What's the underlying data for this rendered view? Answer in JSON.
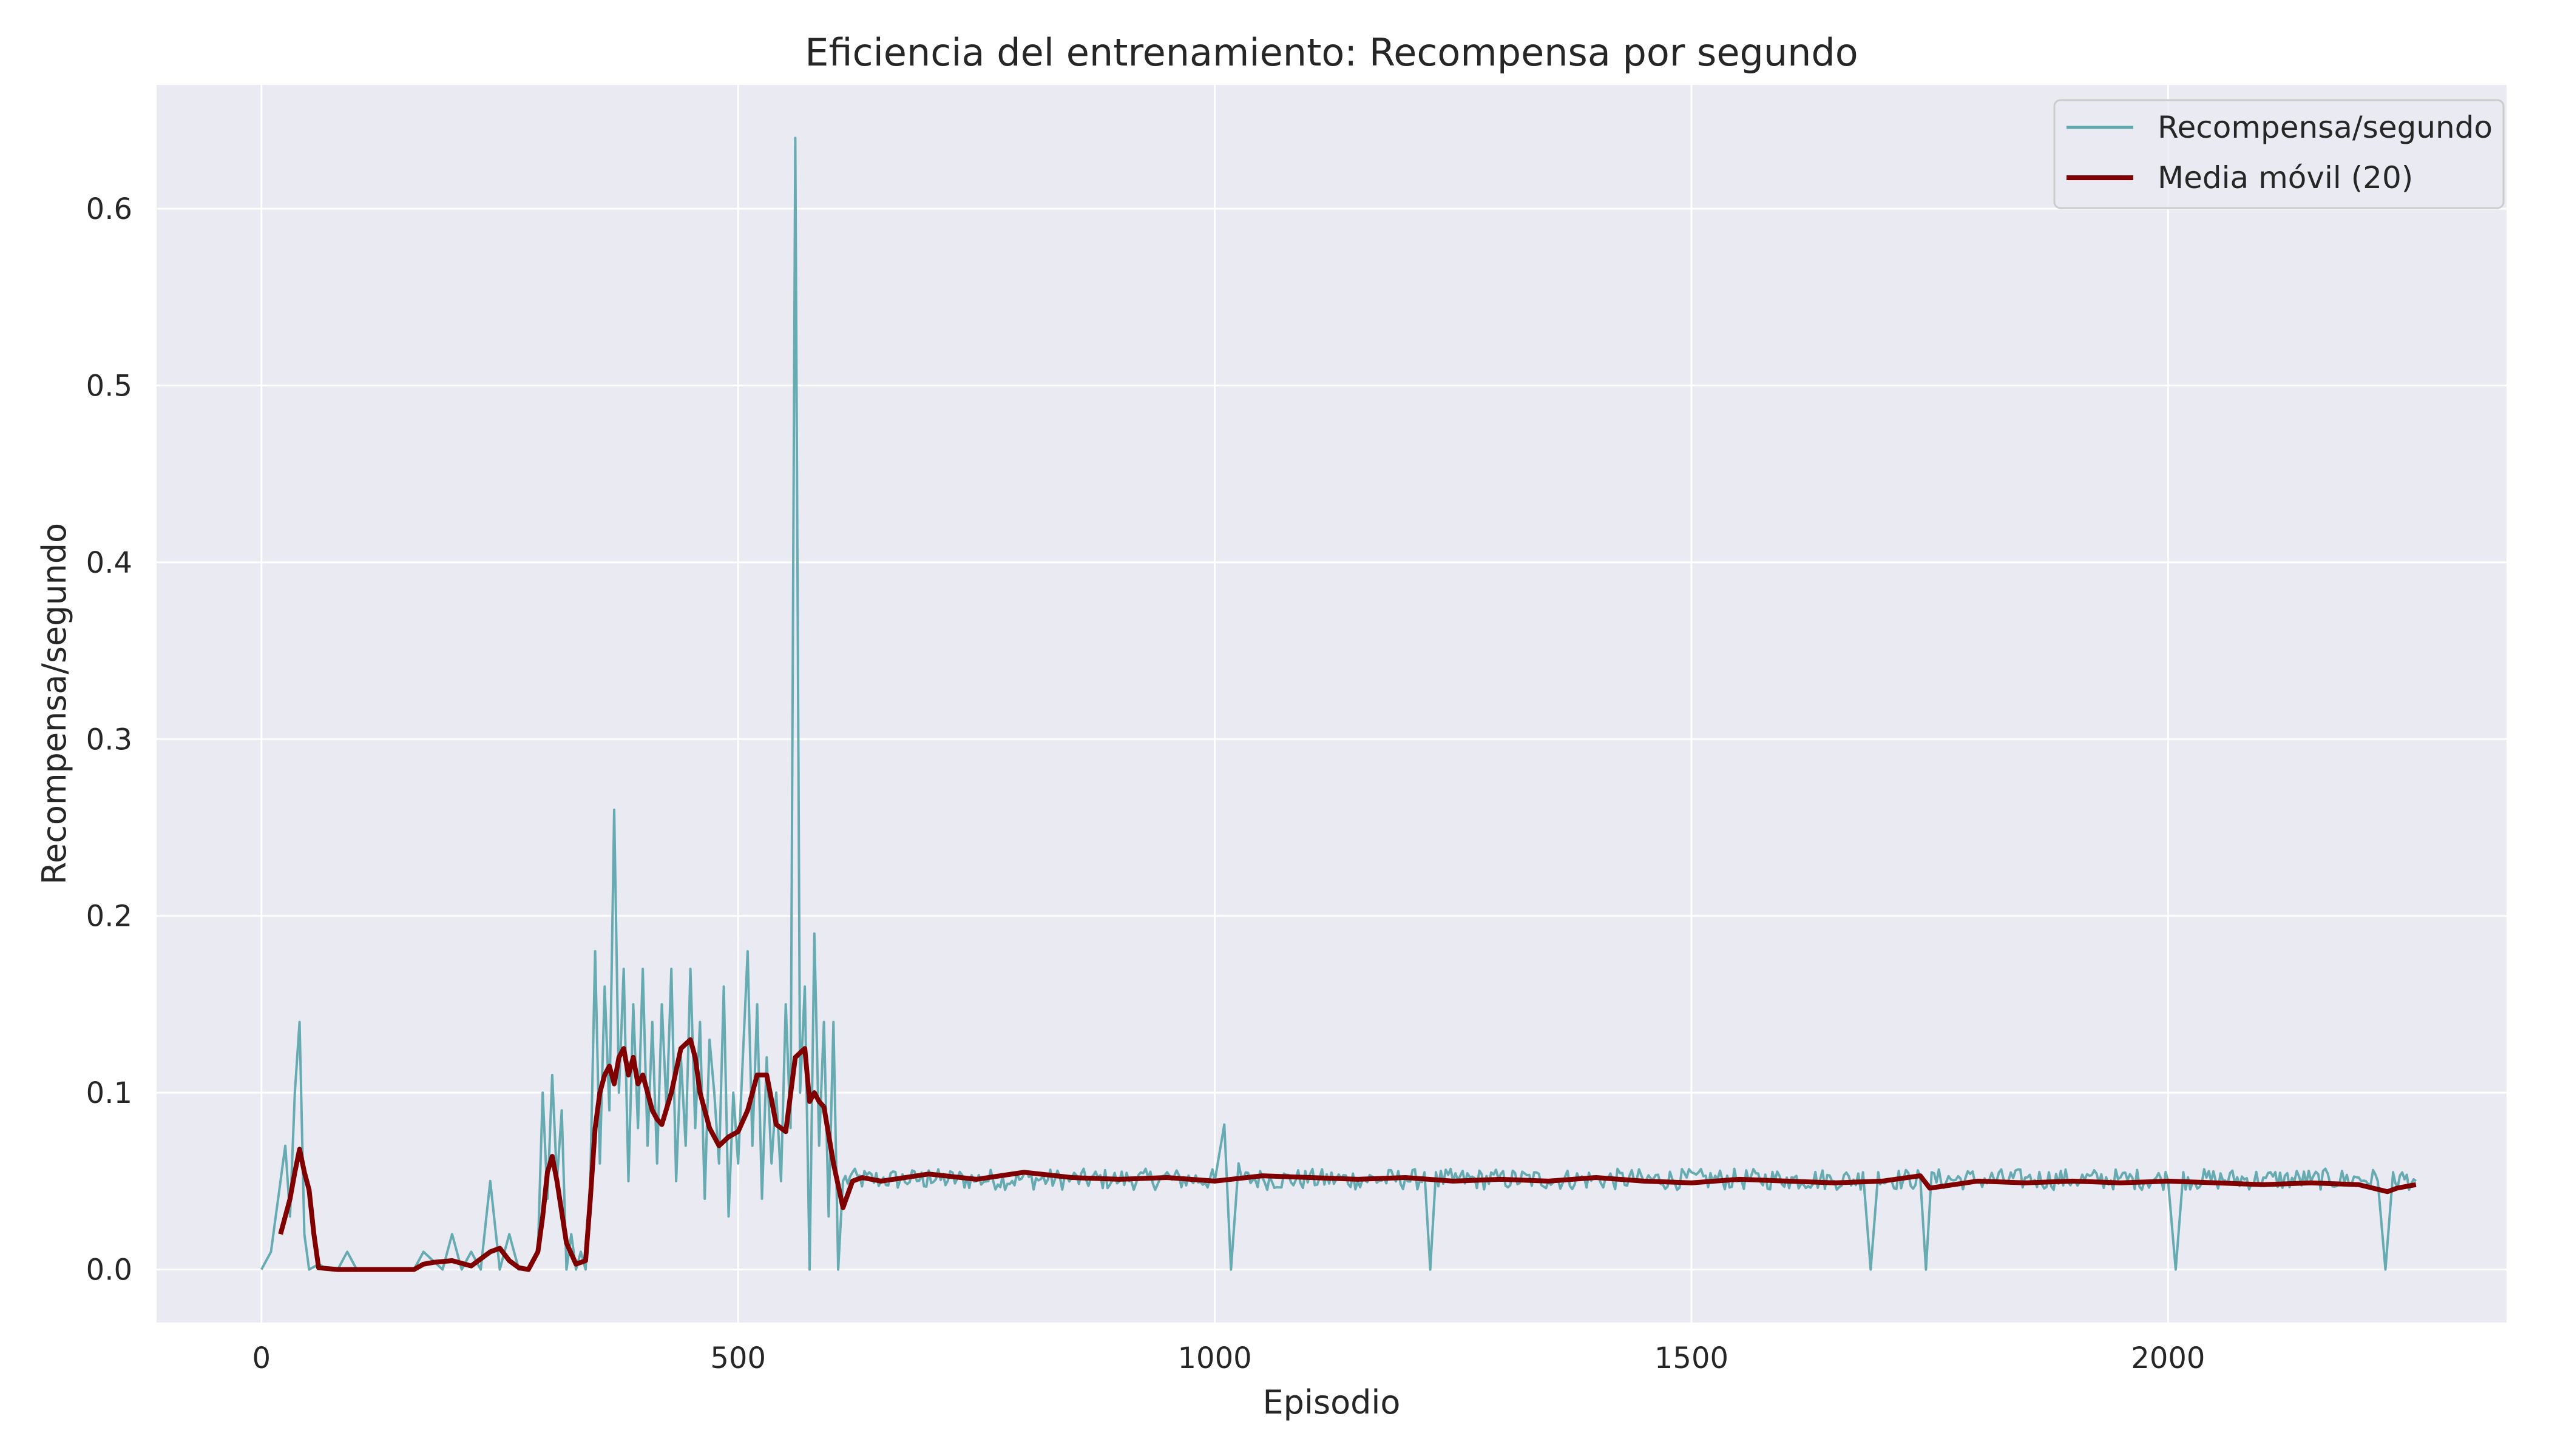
{
  "chart_data": {
    "type": "line",
    "title": "Eficiencia del entrenamiento: Recompensa por segundo",
    "xlabel": "Episodio",
    "ylabel": "Recompensa/segundo",
    "xlim": [
      -110,
      2355
    ],
    "ylim": [
      -0.03,
      0.67
    ],
    "xticks": [
      0,
      500,
      1000,
      1500,
      2000
    ],
    "yticks": [
      0.0,
      0.1,
      0.2,
      0.3,
      0.4,
      0.5,
      0.6
    ],
    "grid": true,
    "legend_position": "top-right",
    "background": "#eaeaf2",
    "series": [
      {
        "name": "Recompensa/segundo",
        "color": "#5fa8ad",
        "style": "thin-noisy",
        "x": [
          0,
          10,
          20,
          25,
          30,
          35,
          40,
          45,
          50,
          60,
          70,
          80,
          90,
          100,
          110,
          120,
          130,
          140,
          150,
          160,
          170,
          180,
          190,
          200,
          210,
          220,
          230,
          240,
          250,
          260,
          270,
          280,
          290,
          295,
          300,
          305,
          310,
          315,
          320,
          325,
          330,
          335,
          340,
          345,
          350,
          355,
          360,
          365,
          370,
          375,
          380,
          385,
          390,
          395,
          400,
          405,
          410,
          415,
          420,
          425,
          430,
          435,
          440,
          445,
          450,
          455,
          460,
          465,
          470,
          475,
          480,
          485,
          490,
          495,
          500,
          505,
          510,
          515,
          520,
          525,
          530,
          535,
          540,
          545,
          550,
          555,
          560,
          565,
          570,
          575,
          580,
          585,
          590,
          595,
          600,
          605,
          610,
          620,
          650,
          700,
          750,
          800,
          850,
          900,
          950,
          1000,
          1010,
          1017,
          1025,
          1050,
          1100,
          1150,
          1200,
          1220,
          1226,
          1232,
          1250,
          1300,
          1350,
          1400,
          1450,
          1500,
          1550,
          1600,
          1650,
          1680,
          1688,
          1696,
          1700,
          1740,
          1746,
          1752,
          1800,
          1850,
          1900,
          1950,
          2000,
          2008,
          2016,
          2050,
          2100,
          2150,
          2200,
          2220,
          2228,
          2236,
          2260
        ],
        "y": [
          0.0,
          0.01,
          0.05,
          0.07,
          0.03,
          0.1,
          0.14,
          0.02,
          0.0,
          0.003,
          0.0,
          0.0,
          0.01,
          0.0,
          0.0,
          0.0,
          0.0,
          0.0,
          0.0,
          0.0,
          0.01,
          0.005,
          0.0,
          0.02,
          0.0,
          0.01,
          0.0,
          0.05,
          0.0,
          0.02,
          0.0,
          0.0,
          0.01,
          0.1,
          0.04,
          0.11,
          0.05,
          0.09,
          0.0,
          0.02,
          0.0,
          0.01,
          0.0,
          0.05,
          0.18,
          0.06,
          0.16,
          0.09,
          0.26,
          0.1,
          0.17,
          0.05,
          0.15,
          0.08,
          0.17,
          0.07,
          0.14,
          0.06,
          0.15,
          0.09,
          0.17,
          0.05,
          0.12,
          0.07,
          0.17,
          0.08,
          0.14,
          0.04,
          0.13,
          0.1,
          0.06,
          0.16,
          0.03,
          0.1,
          0.06,
          0.12,
          0.18,
          0.07,
          0.15,
          0.04,
          0.12,
          0.06,
          0.1,
          0.05,
          0.15,
          0.08,
          0.64,
          0.1,
          0.16,
          0.0,
          0.19,
          0.07,
          0.14,
          0.03,
          0.14,
          0.0,
          0.05,
          0.055,
          0.05,
          0.056,
          0.05,
          0.054,
          0.052,
          0.05,
          0.055,
          0.05,
          0.082,
          0.0,
          0.06,
          0.052,
          0.054,
          0.05,
          0.052,
          0.055,
          0.0,
          0.055,
          0.05,
          0.054,
          0.05,
          0.052,
          0.05,
          0.055,
          0.05,
          0.052,
          0.05,
          0.055,
          0.0,
          0.055,
          0.05,
          0.052,
          0.0,
          0.055,
          0.05,
          0.052,
          0.05,
          0.052,
          0.05,
          0.0,
          0.055,
          0.05,
          0.052,
          0.05,
          0.052,
          0.05,
          0.0,
          0.055,
          0.05
        ]
      },
      {
        "name": "Media móvil (20)",
        "color": "#800000",
        "style": "smooth",
        "x": [
          20,
          30,
          35,
          40,
          45,
          50,
          55,
          60,
          80,
          100,
          120,
          140,
          160,
          170,
          180,
          200,
          220,
          240,
          250,
          260,
          270,
          280,
          290,
          295,
          300,
          305,
          310,
          320,
          330,
          340,
          345,
          350,
          355,
          360,
          365,
          370,
          375,
          380,
          385,
          390,
          395,
          400,
          405,
          410,
          415,
          420,
          430,
          440,
          450,
          455,
          460,
          470,
          480,
          490,
          500,
          510,
          520,
          530,
          540,
          550,
          560,
          570,
          575,
          580,
          585,
          590,
          600,
          610,
          620,
          630,
          650,
          700,
          750,
          800,
          850,
          900,
          950,
          1000,
          1050,
          1100,
          1150,
          1200,
          1250,
          1300,
          1350,
          1400,
          1450,
          1500,
          1550,
          1600,
          1650,
          1700,
          1740,
          1750,
          1800,
          1850,
          1900,
          1950,
          2000,
          2050,
          2100,
          2150,
          2200,
          2230,
          2240,
          2260
        ],
        "y": [
          0.02,
          0.04,
          0.055,
          0.068,
          0.055,
          0.045,
          0.02,
          0.001,
          0.0,
          0.0,
          0.0,
          0.0,
          0.0,
          0.003,
          0.004,
          0.005,
          0.002,
          0.01,
          0.012,
          0.005,
          0.001,
          0.0,
          0.01,
          0.03,
          0.055,
          0.064,
          0.05,
          0.015,
          0.003,
          0.005,
          0.04,
          0.08,
          0.1,
          0.11,
          0.115,
          0.105,
          0.12,
          0.125,
          0.11,
          0.12,
          0.105,
          0.11,
          0.1,
          0.09,
          0.085,
          0.082,
          0.1,
          0.125,
          0.13,
          0.12,
          0.1,
          0.08,
          0.07,
          0.075,
          0.078,
          0.09,
          0.11,
          0.11,
          0.082,
          0.078,
          0.12,
          0.125,
          0.095,
          0.1,
          0.095,
          0.092,
          0.06,
          0.035,
          0.05,
          0.052,
          0.05,
          0.054,
          0.051,
          0.055,
          0.052,
          0.051,
          0.052,
          0.05,
          0.053,
          0.052,
          0.051,
          0.052,
          0.05,
          0.051,
          0.05,
          0.052,
          0.05,
          0.049,
          0.051,
          0.05,
          0.049,
          0.05,
          0.053,
          0.046,
          0.05,
          0.049,
          0.05,
          0.049,
          0.05,
          0.049,
          0.048,
          0.049,
          0.048,
          0.044,
          0.046,
          0.048
        ]
      }
    ]
  }
}
